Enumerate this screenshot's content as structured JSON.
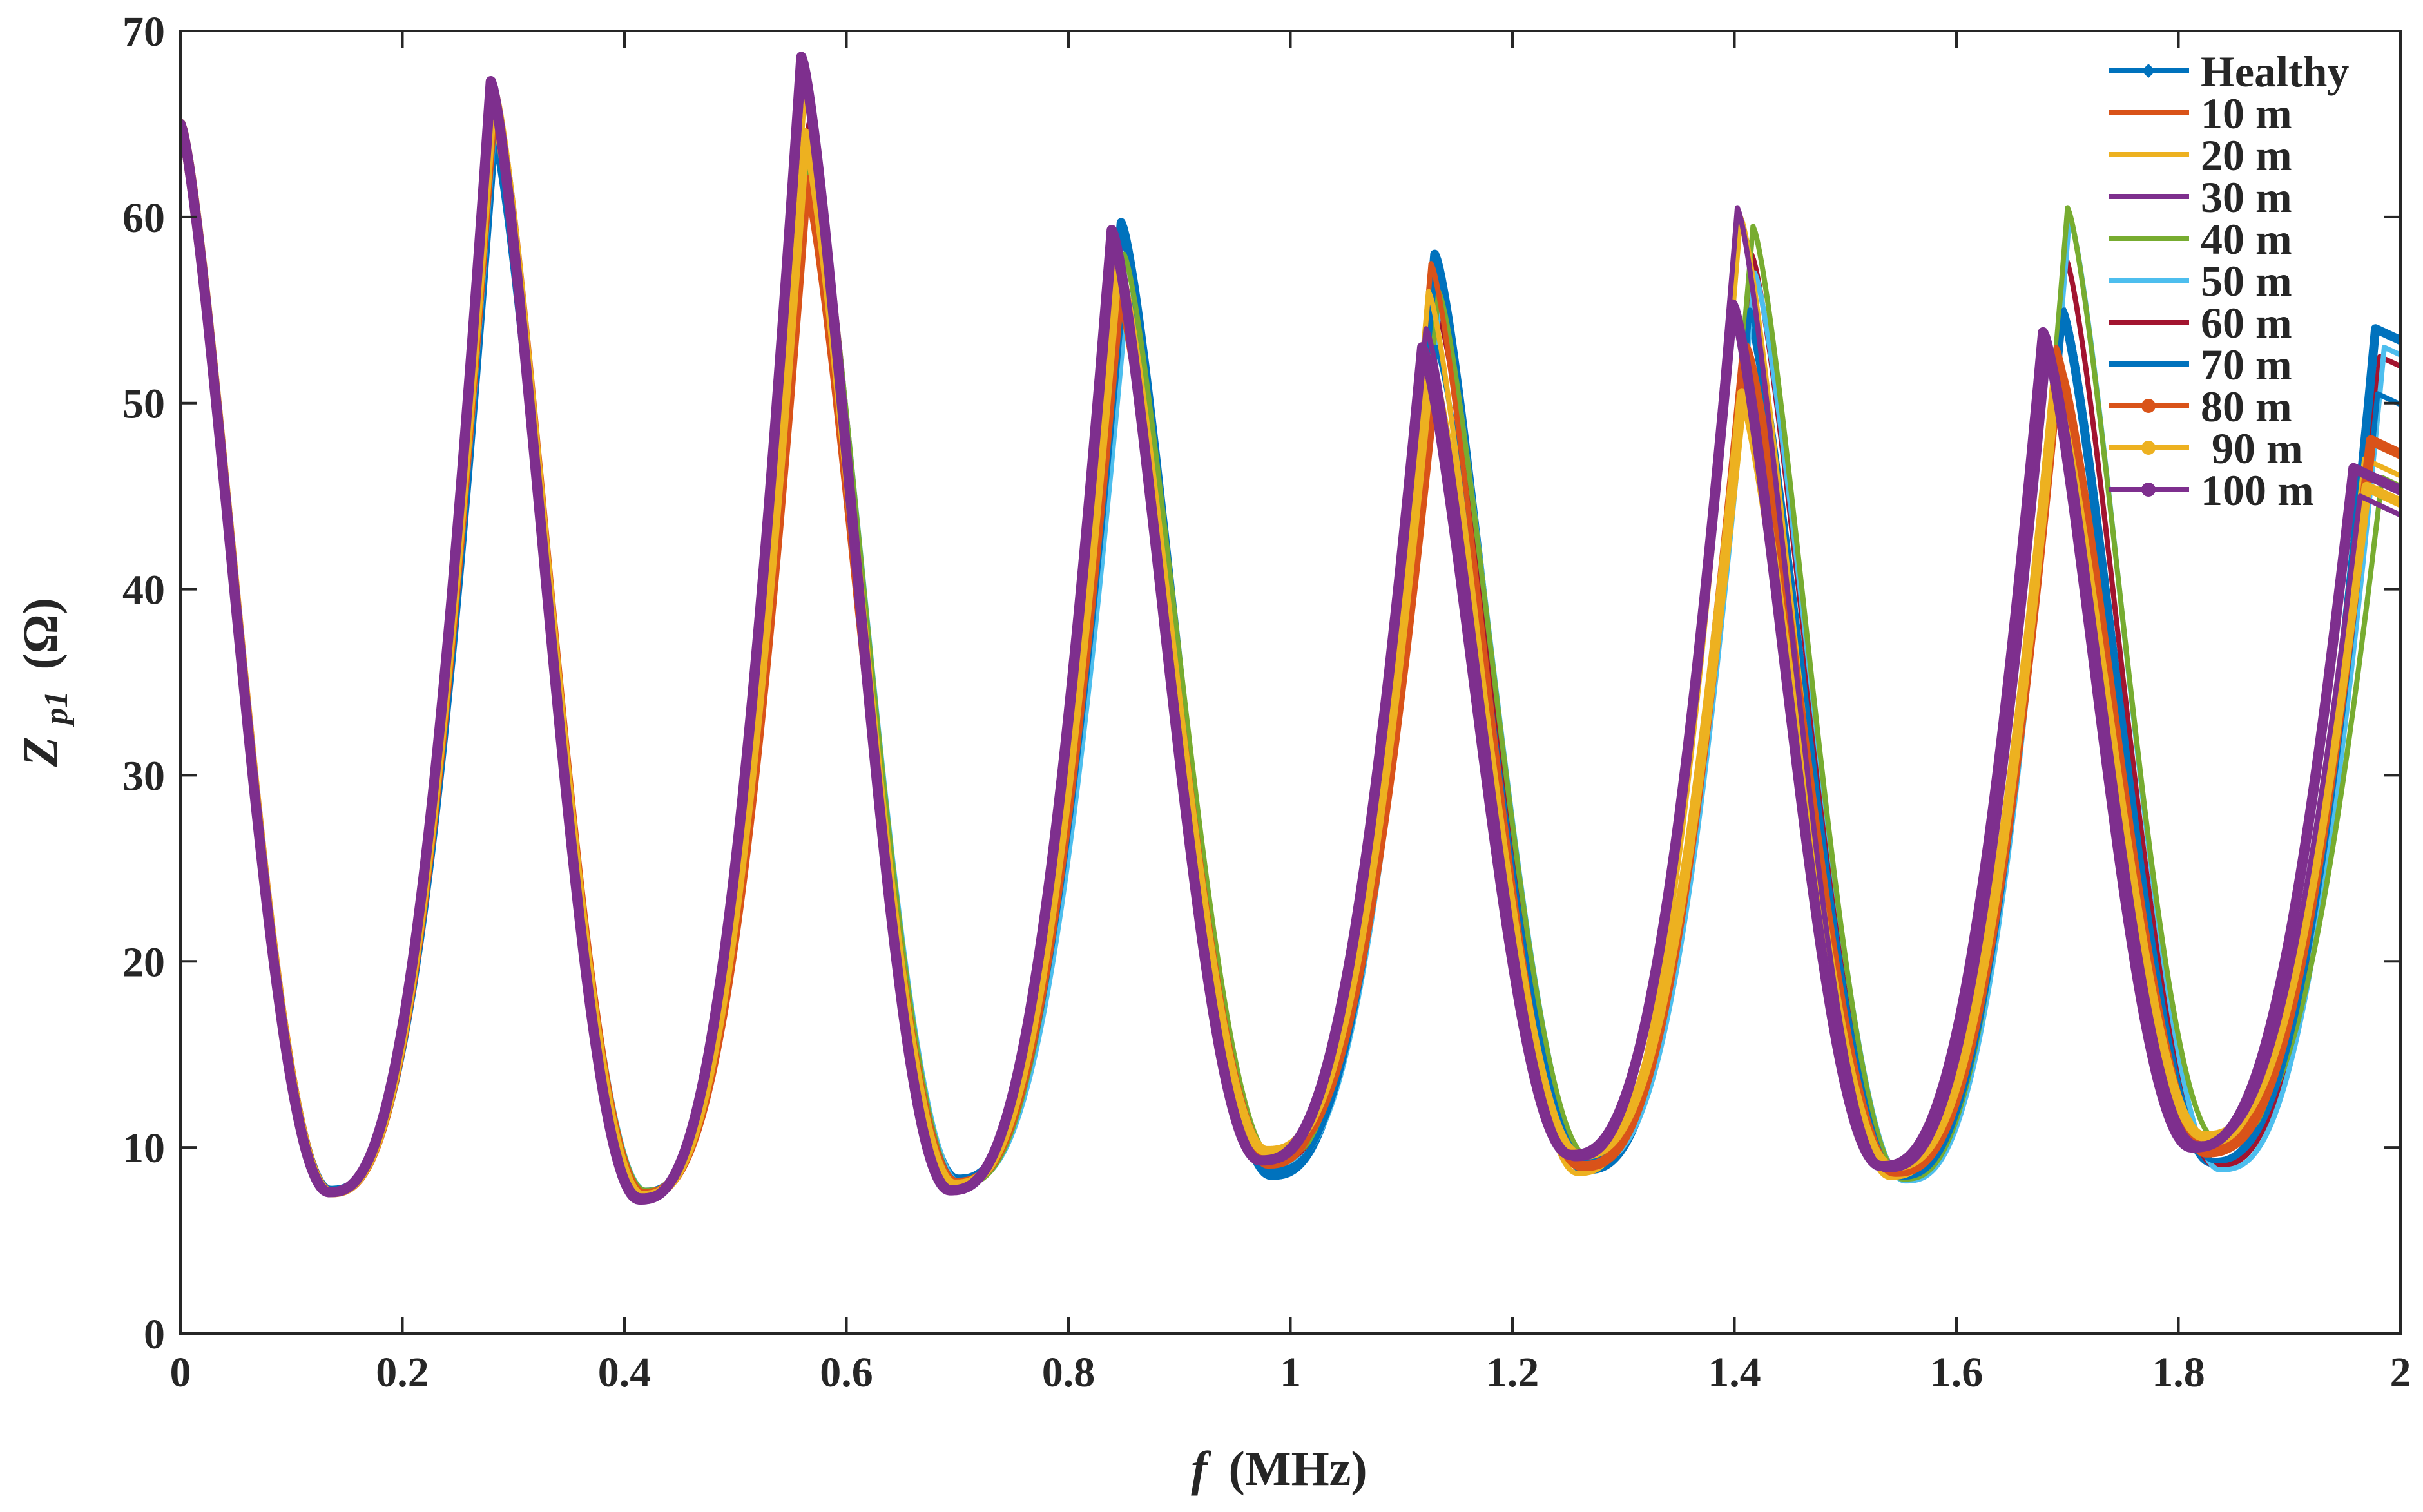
{
  "chart_data": {
    "type": "line",
    "xlabel_symbol": "f",
    "xlabel_unit": "(MHz)",
    "ylabel_symbol": "Z",
    "ylabel_sub": "p1",
    "ylabel_unit": "(Ω)",
    "xlim": [
      0,
      2
    ],
    "ylim": [
      0,
      70
    ],
    "xticks": [
      0,
      0.2,
      0.4,
      0.6,
      0.8,
      1,
      1.2,
      1.4,
      1.6,
      1.8,
      2
    ],
    "xtick_labels": [
      "0",
      "0.2",
      "0.4",
      "0.6",
      "0.8",
      "1",
      "1.2",
      "1.4",
      "1.6",
      "1.8",
      "2"
    ],
    "yticks": [
      0,
      10,
      20,
      30,
      40,
      50,
      60,
      70
    ],
    "ytick_labels": [
      "0",
      "10",
      "20",
      "30",
      "40",
      "50",
      "60",
      "70"
    ],
    "grid": false,
    "legend_position": "top-right",
    "series": [
      {
        "name": "Healthy",
        "color": "#0072BD",
        "marker": "diamond",
        "stretch": 1.0,
        "peaks": [
          65.0,
          64.5,
          63.0,
          59.7,
          58.0,
          55.0,
          55.0,
          54.0
        ],
        "valleys": [
          7.7,
          7.6,
          8.3,
          8.5,
          8.8,
          8.5,
          9.2
        ]
      },
      {
        "name": "10 m",
        "color": "#D95319",
        "marker": "none",
        "stretch": 0.997,
        "peaks": [
          65.0,
          66.0,
          64.0,
          57.0,
          57.5,
          53.0,
          53.0,
          48.0
        ],
        "valleys": [
          7.7,
          7.5,
          8.1,
          9.0,
          9.0,
          8.6,
          9.6
        ]
      },
      {
        "name": "20 m",
        "color": "#EDB120",
        "marker": "none",
        "stretch": 0.995,
        "peaks": [
          65.0,
          65.5,
          66.5,
          58.0,
          56.0,
          60.0,
          51.0,
          47.0
        ],
        "valleys": [
          7.6,
          7.6,
          8.0,
          9.5,
          8.6,
          8.4,
          10.0
        ]
      },
      {
        "name": "30 m",
        "color": "#7E2F8E",
        "marker": "none",
        "stretch": 0.993,
        "peaks": [
          65.0,
          67.0,
          68.0,
          59.0,
          54.0,
          60.5,
          53.0,
          45.0
        ],
        "valleys": [
          7.6,
          7.4,
          7.8,
          9.2,
          9.4,
          8.8,
          10.2
        ]
      },
      {
        "name": "40 m",
        "color": "#77AC30",
        "marker": "none",
        "stretch": 1.003,
        "peaks": [
          65.0,
          65.8,
          64.5,
          58.0,
          56.0,
          59.5,
          60.5,
          46.0
        ],
        "valleys": [
          7.7,
          7.7,
          8.0,
          9.4,
          9.5,
          8.3,
          10.4
        ]
      },
      {
        "name": "50 m",
        "color": "#4DBEEE",
        "marker": "none",
        "stretch": 1.004,
        "peaks": [
          65.0,
          65.5,
          64.0,
          54.5,
          55.5,
          57.0,
          60.0,
          53.0
        ],
        "valleys": [
          7.7,
          7.7,
          8.1,
          9.0,
          9.2,
          8.2,
          8.8
        ]
      },
      {
        "name": "60 m",
        "color": "#A2142F",
        "marker": "none",
        "stretch": 1.002,
        "peaks": [
          65.0,
          66.0,
          65.0,
          55.0,
          55.0,
          58.0,
          57.8,
          52.5
        ],
        "valleys": [
          7.7,
          7.6,
          8.0,
          9.1,
          9.5,
          8.6,
          9.0
        ]
      },
      {
        "name": "70 m",
        "color": "#0072BD",
        "marker": "none",
        "stretch": 1.001,
        "peaks": [
          65.0,
          65.0,
          62.0,
          55.0,
          53.0,
          55.0,
          55.0,
          50.5
        ],
        "valleys": [
          7.7,
          7.5,
          8.2,
          8.8,
          9.3,
          8.4,
          9.3
        ]
      },
      {
        "name": "80 m",
        "color": "#D95319",
        "marker": "circle",
        "stretch": 0.998,
        "peaks": [
          65.0,
          66.5,
          62.0,
          56.0,
          50.0,
          53.0,
          52.0,
          48.0
        ],
        "valleys": [
          7.6,
          7.5,
          8.1,
          9.6,
          9.0,
          8.7,
          9.8
        ]
      },
      {
        "name": " 90 m",
        "color": "#EDB120",
        "marker": "circle",
        "stretch": 0.996,
        "peaks": [
          65.0,
          66.8,
          64.5,
          57.5,
          52.0,
          50.5,
          50.5,
          45.5
        ],
        "valleys": [
          7.6,
          7.4,
          8.0,
          9.8,
          9.6,
          9.0,
          10.6
        ]
      },
      {
        "name": "100 m",
        "color": "#7E2F8E",
        "marker": "circle",
        "stretch": 0.99,
        "peaks": [
          65.0,
          67.3,
          68.6,
          59.3,
          53.0,
          55.3,
          53.8,
          46.5
        ],
        "valleys": [
          7.6,
          7.2,
          7.7,
          9.3,
          9.6,
          9.0,
          10.0
        ]
      }
    ]
  }
}
